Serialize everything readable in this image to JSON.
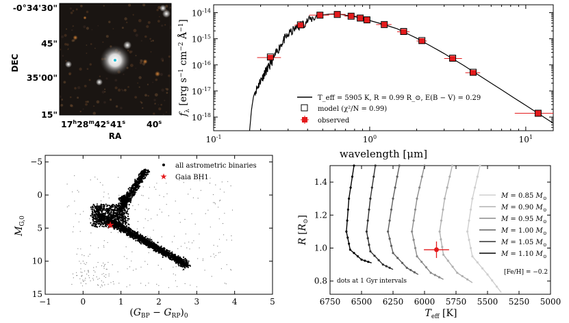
{
  "colors": {
    "axis": "#000000",
    "observed": "#e41a1c",
    "model": "#000000",
    "track_light": "#c8c8c8",
    "track_dark": "#000000"
  },
  "image_panel": {
    "type": "image",
    "xlabel": "RA",
    "ylabel": "DEC",
    "ra_ticks": [
      "17h28m42s",
      "41s",
      "40s"
    ],
    "ra_labels": [
      {
        "main": "17",
        "sup1": "h",
        "mid": "28",
        "sup2": "m",
        "end": "42",
        "sup3": "s"
      },
      {
        "main": "41",
        "sup1": "s"
      },
      {
        "main": "40",
        "sup1": "s"
      }
    ],
    "dec_ticks": [
      "-0°34'30\"",
      "45\"",
      "35'00\"",
      "15\""
    ]
  },
  "chart_data": [
    {
      "type": "scatter",
      "name": "SED",
      "xlabel": "wavelength [μm]",
      "ylabel": "f_λ [erg s^-1 cm^-2 Å^-1]",
      "xscale": "log",
      "yscale": "log",
      "xlim": [
        0.1,
        15
      ],
      "ylim": [
        3e-19,
        2e-14
      ],
      "x_ticks": [
        {
          "v": 0.1,
          "label": "10^-1"
        },
        {
          "v": 1,
          "label": "10^0"
        },
        {
          "v": 10,
          "label": "10^1"
        }
      ],
      "y_ticks": [
        {
          "v": 1e-14,
          "label": "10^-14"
        },
        {
          "v": 1e-15,
          "label": "10^-15"
        },
        {
          "v": 1e-16,
          "label": "10^-16"
        },
        {
          "v": 1e-17,
          "label": "10^-17"
        },
        {
          "v": 1e-18,
          "label": "10^-18"
        }
      ],
      "legend": {
        "placement": "lower-center",
        "line_label": "T_eff = 5905 K,  R = 0.99 R_⊙,  E(B − V) = 0.29",
        "model_label": "model (χ²/N = 0.99)",
        "observed_label": "observed"
      },
      "observed": [
        {
          "x": 0.231,
          "y": 1.9e-16,
          "xerr": [
            0.19,
            0.27
          ]
        },
        {
          "x": 0.36,
          "y": 3.3e-15,
          "xerr": [
            0.33,
            0.39
          ]
        },
        {
          "x": 0.48,
          "y": 8e-15,
          "xerr": [
            0.41,
            0.55
          ]
        },
        {
          "x": 0.62,
          "y": 8.6e-15,
          "xerr": [
            0.55,
            0.7
          ]
        },
        {
          "x": 0.76,
          "y": 7.4e-15,
          "xerr": [
            0.69,
            0.83
          ]
        },
        {
          "x": 0.87,
          "y": 6.2e-15,
          "xerr": [
            0.83,
            0.92
          ]
        },
        {
          "x": 0.96,
          "y": 5.3e-15,
          "xerr": [
            0.92,
            1.0
          ]
        },
        {
          "x": 1.24,
          "y": 3.5e-15,
          "xerr": [
            1.1,
            1.38
          ]
        },
        {
          "x": 1.65,
          "y": 1.85e-15,
          "xerr": [
            1.5,
            1.8
          ]
        },
        {
          "x": 2.16,
          "y": 8.2e-16,
          "xerr": [
            2.0,
            2.32
          ]
        },
        {
          "x": 3.4,
          "y": 1.75e-16,
          "xerr": [
            3.0,
            3.9
          ]
        },
        {
          "x": 4.6,
          "y": 5e-17,
          "xerr": [
            4.1,
            5.1
          ]
        },
        {
          "x": 12,
          "y": 1.4e-18,
          "xerr": [
            8.5,
            15
          ]
        }
      ],
      "model_points": [
        {
          "x": 0.231,
          "y": 2e-16
        },
        {
          "x": 0.36,
          "y": 3.4e-15
        },
        {
          "x": 0.48,
          "y": 8e-15
        },
        {
          "x": 0.62,
          "y": 8.5e-15
        },
        {
          "x": 0.76,
          "y": 7.3e-15
        },
        {
          "x": 0.87,
          "y": 6.2e-15
        },
        {
          "x": 0.96,
          "y": 5.3e-15
        },
        {
          "x": 1.24,
          "y": 3.5e-15
        },
        {
          "x": 1.65,
          "y": 1.9e-15
        },
        {
          "x": 2.16,
          "y": 8.5e-16
        },
        {
          "x": 3.4,
          "y": 1.8e-16
        },
        {
          "x": 4.6,
          "y": 5.2e-17
        },
        {
          "x": 12,
          "y": 1.4e-18
        }
      ],
      "model_curve": [
        [
          0.17,
          3e-19
        ],
        [
          0.175,
          2e-18
        ],
        [
          0.18,
          6e-18
        ],
        [
          0.185,
          1e-17
        ],
        [
          0.19,
          1.3e-17
        ],
        [
          0.195,
          1.8e-17
        ],
        [
          0.2,
          2.6e-17
        ],
        [
          0.205,
          3.2e-17
        ],
        [
          0.21,
          4.2e-17
        ],
        [
          0.215,
          5.5e-17
        ],
        [
          0.22,
          6.5e-17
        ],
        [
          0.225,
          8e-17
        ],
        [
          0.23,
          1e-16
        ],
        [
          0.24,
          1.6e-16
        ],
        [
          0.25,
          2.6e-16
        ],
        [
          0.26,
          4e-16
        ],
        [
          0.27,
          6e-16
        ],
        [
          0.28,
          8.5e-16
        ],
        [
          0.29,
          1.1e-15
        ],
        [
          0.3,
          1.4e-15
        ],
        [
          0.32,
          2e-15
        ],
        [
          0.34,
          2.6e-15
        ],
        [
          0.36,
          3.2e-15
        ],
        [
          0.38,
          4e-15
        ],
        [
          0.4,
          4.8e-15
        ],
        [
          0.43,
          6e-15
        ],
        [
          0.46,
          7.2e-15
        ],
        [
          0.5,
          8.2e-15
        ],
        [
          0.55,
          8.8e-15
        ],
        [
          0.6,
          8.9e-15
        ],
        [
          0.65,
          8.6e-15
        ],
        [
          0.7,
          8e-15
        ],
        [
          0.8,
          7e-15
        ],
        [
          0.9,
          5.9e-15
        ],
        [
          1.0,
          5e-15
        ],
        [
          1.2,
          3.7e-15
        ],
        [
          1.5,
          2.4e-15
        ],
        [
          2.0,
          1.05e-15
        ],
        [
          2.5,
          5e-16
        ],
        [
          3.0,
          2.7e-16
        ],
        [
          4.0,
          9.5e-17
        ],
        [
          5.0,
          4e-17
        ],
        [
          7.0,
          1.1e-17
        ],
        [
          10.0,
          2.8e-18
        ],
        [
          15.0,
          5.8e-19
        ]
      ]
    },
    {
      "type": "scatter",
      "name": "CMD",
      "xlabel": "(G_BP − G_RP)_0",
      "ylabel": "M_G,0",
      "xlim": [
        -1,
        5
      ],
      "ylim": [
        15,
        -6
      ],
      "x_ticks": [
        -1,
        0,
        1,
        2,
        3,
        4,
        5
      ],
      "y_ticks": [
        -5,
        0,
        5,
        10,
        15
      ],
      "legend": {
        "placement": "top-right",
        "dots_label": "all astrometric binaries",
        "star_label": "Gaia BH1"
      },
      "gaia_bh1": {
        "x": 0.72,
        "y": 4.5
      }
    },
    {
      "type": "line",
      "name": "Tracks",
      "xlabel": "T_eff [K]",
      "ylabel": "R [R_⊙]",
      "xlim": [
        6750,
        5000
      ],
      "ylim": [
        0.72,
        1.5
      ],
      "x_ticks": [
        6750,
        6500,
        6250,
        6000,
        5750,
        5500,
        5250,
        5000
      ],
      "y_ticks": [
        0.8,
        1.0,
        1.2,
        1.4
      ],
      "note": "dots at 1 Gyr intervals",
      "feh_label": "[Fe/H] = −0.2",
      "series": [
        {
          "name": "M = 0.85 M_⊙",
          "mass": "0.85",
          "color": "#cfcfcf",
          "points": [
            [
              5560,
              1.5
            ],
            [
              5620,
              1.3
            ],
            [
              5660,
              1.1
            ],
            [
              5620,
              0.95
            ],
            [
              5500,
              0.84
            ],
            [
              5390,
              0.73
            ]
          ]
        },
        {
          "name": "M = 0.90 M_⊙",
          "mass": "0.90",
          "color": "#b0b0b0",
          "points": [
            [
              5780,
              1.5
            ],
            [
              5840,
              1.3
            ],
            [
              5880,
              1.1
            ],
            [
              5850,
              0.96
            ],
            [
              5740,
              0.85
            ],
            [
              5620,
              0.79
            ]
          ]
        },
        {
          "name": "M = 0.95 M_⊙",
          "mass": "0.95",
          "color": "#8a8a8a",
          "points": [
            [
              6000,
              1.5
            ],
            [
              6060,
              1.3
            ],
            [
              6100,
              1.1
            ],
            [
              6060,
              0.95
            ],
            [
              5950,
              0.85
            ],
            [
              5850,
              0.81
            ]
          ]
        },
        {
          "name": "M = 1.00 M_⊙",
          "mass": "1.00",
          "color": "#5e5e5e",
          "points": [
            [
              6200,
              1.5
            ],
            [
              6250,
              1.3
            ],
            [
              6290,
              1.1
            ],
            [
              6250,
              0.97
            ],
            [
              6140,
              0.88
            ],
            [
              6050,
              0.84
            ]
          ]
        },
        {
          "name": "M = 1.05 M_⊙",
          "mass": "1.05",
          "color": "#2e2e2e",
          "points": [
            [
              6390,
              1.5
            ],
            [
              6430,
              1.3
            ],
            [
              6460,
              1.1
            ],
            [
              6430,
              0.98
            ],
            [
              6330,
              0.9
            ],
            [
              6250,
              0.87
            ]
          ]
        },
        {
          "name": "M = 1.10 M_⊙",
          "mass": "1.10",
          "color": "#000000",
          "points": [
            [
              6560,
              1.5
            ],
            [
              6600,
              1.3
            ],
            [
              6620,
              1.1
            ],
            [
              6590,
              0.99
            ],
            [
              6500,
              0.93
            ],
            [
              6420,
              0.91
            ]
          ]
        }
      ],
      "observed": {
        "teff": 5905,
        "teff_err": 100,
        "r": 0.99,
        "r_err": 0.05
      }
    }
  ]
}
